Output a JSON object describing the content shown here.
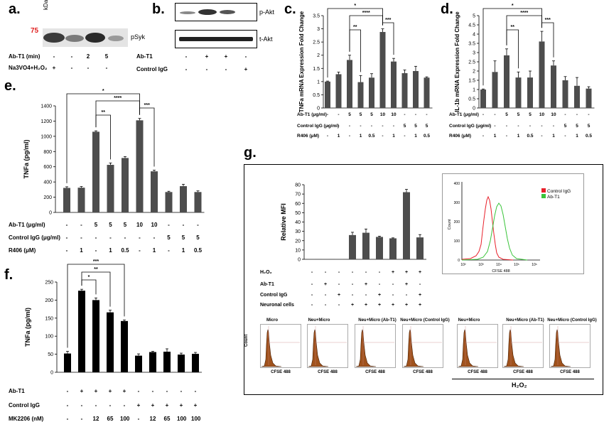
{
  "panels": {
    "a": {
      "letter": "a.",
      "kda_label": "kDa",
      "marker": "75",
      "band_label": "pSyk",
      "rows": [
        {
          "label": "Ab-T1 (min)",
          "values": [
            "-",
            "-",
            "2",
            "5"
          ]
        },
        {
          "label": "Na3VO4+H₂O₂",
          "values": [
            "+",
            "-",
            "-",
            "-"
          ]
        }
      ]
    },
    "b": {
      "letter": "b.",
      "band_labels": [
        "p-Akt",
        "t-Akt"
      ],
      "rows": [
        {
          "label": "Ab-T1",
          "values": [
            "-",
            "+",
            "+",
            "-"
          ]
        },
        {
          "label": "Control IgG",
          "values": [
            "-",
            "-",
            "-",
            "+"
          ]
        }
      ]
    },
    "g": {
      "letter": "g.",
      "rows": [
        {
          "label": "H₂O₂",
          "values": [
            "-",
            "-",
            "-",
            "-",
            "-",
            "-",
            "+",
            "+",
            "+"
          ]
        },
        {
          "label": "Ab-T1",
          "values": [
            "-",
            "+",
            "-",
            "-",
            "+",
            "-",
            "-",
            "+",
            "-"
          ]
        },
        {
          "label": "Control IgG",
          "values": [
            "-",
            "-",
            "+",
            "-",
            "-",
            "+",
            "-",
            "-",
            "+"
          ]
        },
        {
          "label": "Neuronal cells",
          "values": [
            "-",
            "-",
            "-",
            "+",
            "+",
            "+",
            "+",
            "+",
            "+"
          ]
        }
      ],
      "histograms": {
        "titles": [
          "Micro",
          "Neu+Micro",
          "Neu+Micro (Ab-T1)",
          "Neu+Micro (Control IgG)",
          "Neu+Micro",
          "Neu+Micro (Ab-T1)",
          "Neu+Micro (Control IgG)"
        ],
        "xlabel": "CFSE 488",
        "ylabel": "Count",
        "group_label": "H₂O₂"
      },
      "overlay": {
        "legend": [
          "Control IgG",
          "Ab-T1"
        ],
        "xlabel": "CFSE 488",
        "ylabel": "Count",
        "xticks": [
          "10²",
          "10³",
          "10⁴",
          "10⁵",
          "10⁶"
        ],
        "yticks": [
          "0",
          "100",
          "200",
          "300",
          "400"
        ],
        "colors": {
          "control": "#e8202a",
          "abt1": "#3ac43a"
        }
      }
    }
  },
  "chart_data": [
    {
      "id": "c",
      "letter": "c.",
      "type": "bar",
      "ylabel": "TNFa mRNA Expression Fold Change",
      "ylim": [
        0,
        3.5
      ],
      "yticks": [
        "0",
        "0.5",
        "1",
        "1.5",
        "2",
        "2.5",
        "3",
        "3.5"
      ],
      "values": [
        1.0,
        1.28,
        1.82,
        0.98,
        1.15,
        2.88,
        1.76,
        1.32,
        1.4,
        1.15
      ],
      "errors": [
        0.02,
        0.08,
        0.18,
        0.25,
        0.15,
        0.12,
        0.12,
        0.12,
        0.18,
        0.03
      ],
      "rows": [
        {
          "label": "Ab-T1 (μg/ml)",
          "values": [
            "-",
            "-",
            "5",
            "5",
            "5",
            "10",
            "10",
            "-",
            "-",
            "-"
          ]
        },
        {
          "label": "Control IgG (μg/ml)",
          "values": [
            "-",
            "-",
            "-",
            "-",
            "-",
            "-",
            "-",
            "5",
            "5",
            "5"
          ]
        },
        {
          "label": "R406 (μM)",
          "values": [
            "-",
            "1",
            "-",
            "1",
            "0.5",
            "-",
            "1",
            "-",
            "1",
            "0.5"
          ]
        }
      ],
      "brackets": [
        {
          "from": 0,
          "to": 5,
          "level": 0,
          "label": "*"
        },
        {
          "from": 2,
          "to": 5,
          "level": 1,
          "label": "****"
        },
        {
          "from": 5,
          "to": 6,
          "level": 2,
          "label": "***"
        },
        {
          "from": 2,
          "to": 3,
          "level": 3,
          "label": "**"
        }
      ]
    },
    {
      "id": "d",
      "letter": "d.",
      "type": "bar",
      "ylabel": "IL-1b mRNA Expression Fold Change",
      "ylim": [
        0,
        5
      ],
      "yticks": [
        "0",
        "0.5",
        "1",
        "1.5",
        "2",
        "2.5",
        "3",
        "3.5",
        "4",
        "4.5",
        "5"
      ],
      "values": [
        1.0,
        1.95,
        2.85,
        1.65,
        1.65,
        3.6,
        2.3,
        1.5,
        1.2,
        1.05
      ],
      "errors": [
        0.03,
        0.6,
        0.35,
        0.3,
        0.35,
        0.55,
        0.25,
        0.2,
        0.45,
        0.1
      ],
      "rows": [
        {
          "label": "Ab-T1 (μg/ml)",
          "values": [
            "-",
            "-",
            "5",
            "5",
            "5",
            "10",
            "10",
            "-",
            "-",
            "-"
          ]
        },
        {
          "label": "Control IgG (μg/ml)",
          "values": [
            "-",
            "-",
            "-",
            "-",
            "-",
            "-",
            "-",
            "5",
            "5",
            "5"
          ]
        },
        {
          "label": "R406 (μM)",
          "values": [
            "-",
            "1",
            "-",
            "1",
            "0.5",
            "-",
            "1",
            "-",
            "1",
            "0.5"
          ]
        }
      ],
      "brackets": [
        {
          "from": 0,
          "to": 5,
          "level": 0,
          "label": "*"
        },
        {
          "from": 2,
          "to": 5,
          "level": 1,
          "label": "****"
        },
        {
          "from": 5,
          "to": 6,
          "level": 2,
          "label": "***"
        },
        {
          "from": 2,
          "to": 3,
          "level": 3,
          "label": "**"
        }
      ]
    },
    {
      "id": "e",
      "letter": "e.",
      "type": "bar",
      "ylabel": "TNFa (pg/ml)",
      "ylim": [
        0,
        1400
      ],
      "yticks": [
        "0",
        "200",
        "400",
        "600",
        "800",
        "1000",
        "1200",
        "1400"
      ],
      "values": [
        322,
        325,
        1060,
        625,
        715,
        1210,
        540,
        268,
        345,
        268
      ],
      "errors": [
        15,
        15,
        12,
        25,
        18,
        25,
        15,
        10,
        25,
        15
      ],
      "rows": [
        {
          "label": "Ab-T1 (μg/ml)",
          "values": [
            "-",
            "-",
            "5",
            "5",
            "5",
            "10",
            "10",
            "-",
            "-",
            "-"
          ]
        },
        {
          "label": "Control IgG (μg/ml)",
          "values": [
            "-",
            "-",
            "-",
            "-",
            "-",
            "-",
            "-",
            "5",
            "5",
            "5"
          ]
        },
        {
          "label": "R406 (μM)",
          "values": [
            "-",
            "1",
            "-",
            "1",
            "0.5",
            "-",
            "1",
            "-",
            "1",
            "0.5"
          ]
        }
      ],
      "brackets": [
        {
          "from": 0,
          "to": 5,
          "level": 0,
          "label": "*"
        },
        {
          "from": 2,
          "to": 5,
          "level": 1,
          "label": "****"
        },
        {
          "from": 5,
          "to": 6,
          "level": 2,
          "label": "***"
        },
        {
          "from": 2,
          "to": 3,
          "level": 3,
          "label": "**"
        }
      ]
    },
    {
      "id": "f",
      "letter": "f.",
      "type": "bar",
      "ylabel": "TNFa (pg/ml)",
      "ylim": [
        0,
        250
      ],
      "yticks": [
        "0",
        "50",
        "100",
        "150",
        "200",
        "250"
      ],
      "values": [
        52,
        226,
        200,
        166,
        142,
        46,
        56,
        57,
        49,
        51
      ],
      "errors": [
        6,
        4,
        6,
        6,
        3,
        5,
        2,
        8,
        4,
        4
      ],
      "rows": [
        {
          "label": "Ab-T1",
          "values": [
            "-",
            "+",
            "+",
            "+",
            "+",
            "-",
            "-",
            "-",
            "-",
            "-"
          ]
        },
        {
          "label": "Control IgG",
          "values": [
            "-",
            "-",
            "-",
            "-",
            "-",
            "+",
            "+",
            "+",
            "+",
            "+"
          ]
        },
        {
          "label": "MK2206 (nM)",
          "values": [
            "-",
            "-",
            "12",
            "65",
            "100",
            "-",
            "12",
            "65",
            "100",
            "100"
          ]
        }
      ],
      "brackets": [
        {
          "from": 0,
          "to": 4,
          "level": 0,
          "label": "***"
        },
        {
          "from": 1,
          "to": 3,
          "level": 1,
          "label": "**"
        },
        {
          "from": 1,
          "to": 2,
          "level": 2,
          "label": "*"
        }
      ]
    },
    {
      "id": "g",
      "type": "bar",
      "ylabel": "Relative MFI",
      "ylim": [
        0,
        80
      ],
      "yticks": [
        "0",
        "10",
        "20",
        "30",
        "40",
        "50",
        "60",
        "70",
        "80"
      ],
      "values": [
        0.3,
        0.3,
        0.3,
        26,
        28.5,
        24,
        22.5,
        72,
        23.5
      ],
      "errors": [
        0,
        0,
        0,
        3,
        4,
        0.8,
        0.5,
        3,
        3
      ]
    }
  ]
}
